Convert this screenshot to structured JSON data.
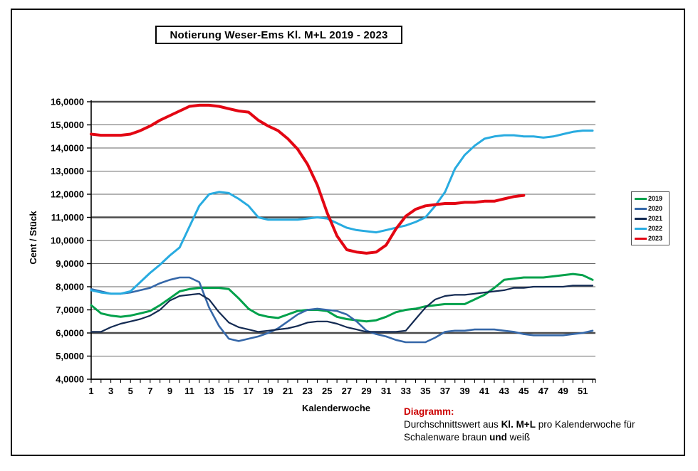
{
  "window": {
    "background": "#ffffff",
    "frame_border_color": "#000000"
  },
  "note": {
    "heading": "Diagramm:",
    "line2_a": "Durchschnittswert aus ",
    "line2_b": "Kl. M+L",
    "line2_c": " pro Kalenderwoche für",
    "line3_a": "Schalenware braun ",
    "line3_b": "und",
    "line3_c": " weiß",
    "heading_color": "#cc0000"
  },
  "chart_data": {
    "type": "line",
    "title": "Notierung Weser-Ems Kl. M+L 2019 - 2023",
    "xlabel": "Kalenderwoche",
    "ylabel": "Cent / Stück",
    "xlim": [
      1,
      52
    ],
    "ylim": [
      4,
      16
    ],
    "grid": "horizontal",
    "major_gridlines_at": [
      6,
      11,
      16
    ],
    "legend_position": "right-outside",
    "y_tick_labels": [
      "4,0000",
      "5,0000",
      "6,0000",
      "7,0000",
      "8,0000",
      "9,0000",
      "10,0000",
      "11,0000",
      "12,0000",
      "13,0000",
      "14,0000",
      "15,0000",
      "16,0000"
    ],
    "y_tick_values": [
      4,
      5,
      6,
      7,
      8,
      9,
      10,
      11,
      12,
      13,
      14,
      15,
      16
    ],
    "x_tick_labels": [
      "1",
      "3",
      "5",
      "7",
      "9",
      "11",
      "13",
      "15",
      "17",
      "19",
      "21",
      "23",
      "25",
      "27",
      "29",
      "31",
      "33",
      "35",
      "37",
      "39",
      "41",
      "43",
      "45",
      "47",
      "49",
      "51"
    ],
    "x_tick_values": [
      1,
      3,
      5,
      7,
      9,
      11,
      13,
      15,
      17,
      19,
      21,
      23,
      25,
      27,
      29,
      31,
      33,
      35,
      37,
      39,
      41,
      43,
      45,
      47,
      49,
      51
    ],
    "x_minor_tick_step": 1,
    "x_is_week_index_plus_1": true,
    "series": [
      {
        "name": "2019",
        "color": "#00a14b",
        "width": 3,
        "values": [
          7.2,
          6.85,
          6.75,
          6.7,
          6.75,
          6.85,
          6.95,
          7.2,
          7.5,
          7.8,
          7.9,
          7.95,
          7.95,
          7.95,
          7.9,
          7.5,
          7.05,
          6.8,
          6.7,
          6.65,
          6.8,
          6.95,
          7.0,
          7.0,
          6.95,
          6.7,
          6.6,
          6.55,
          6.5,
          6.55,
          6.7,
          6.9,
          7.0,
          7.05,
          7.15,
          7.2,
          7.25,
          7.25,
          7.25,
          7.45,
          7.65,
          7.95,
          8.3,
          8.35,
          8.4,
          8.4,
          8.4,
          8.45,
          8.5,
          8.55,
          8.5,
          8.3
        ]
      },
      {
        "name": "2020",
        "color": "#3567a8",
        "width": 2.6,
        "values": [
          7.9,
          7.8,
          7.7,
          7.7,
          7.75,
          7.85,
          7.95,
          8.15,
          8.3,
          8.4,
          8.4,
          8.2,
          7.1,
          6.3,
          5.75,
          5.65,
          5.75,
          5.85,
          6.0,
          6.2,
          6.5,
          6.8,
          7.0,
          7.05,
          7.0,
          6.95,
          6.8,
          6.5,
          6.1,
          5.95,
          5.85,
          5.7,
          5.6,
          5.6,
          5.6,
          5.8,
          6.05,
          6.1,
          6.1,
          6.15,
          6.15,
          6.15,
          6.1,
          6.05,
          5.95,
          5.9,
          5.9,
          5.9,
          5.9,
          5.95,
          6.0,
          6.1
        ]
      },
      {
        "name": "2021",
        "color": "#132a52",
        "width": 2.2,
        "values": [
          6.05,
          6.05,
          6.25,
          6.4,
          6.5,
          6.6,
          6.75,
          7.0,
          7.4,
          7.6,
          7.65,
          7.7,
          7.45,
          6.9,
          6.45,
          6.25,
          6.15,
          6.05,
          6.1,
          6.15,
          6.2,
          6.3,
          6.45,
          6.5,
          6.5,
          6.4,
          6.25,
          6.15,
          6.05,
          6.05,
          6.05,
          6.05,
          6.1,
          6.6,
          7.1,
          7.45,
          7.6,
          7.65,
          7.65,
          7.7,
          7.75,
          7.8,
          7.85,
          7.95,
          7.95,
          8.0,
          8.0,
          8.0,
          8.0,
          8.05,
          8.05,
          8.05
        ]
      },
      {
        "name": "2022",
        "color": "#28abe0",
        "width": 3,
        "values": [
          7.85,
          7.75,
          7.7,
          7.7,
          7.8,
          8.2,
          8.6,
          8.95,
          9.35,
          9.7,
          10.6,
          11.5,
          12.0,
          12.1,
          12.05,
          11.8,
          11.5,
          11.0,
          10.9,
          10.9,
          10.9,
          10.9,
          10.95,
          11.0,
          10.95,
          10.75,
          10.55,
          10.45,
          10.4,
          10.35,
          10.45,
          10.55,
          10.65,
          10.8,
          11.0,
          11.5,
          12.1,
          13.1,
          13.7,
          14.1,
          14.4,
          14.5,
          14.55,
          14.55,
          14.5,
          14.5,
          14.45,
          14.5,
          14.6,
          14.7,
          14.75,
          14.75
        ]
      },
      {
        "name": "2023",
        "color": "#e30613",
        "width": 4,
        "values": [
          14.6,
          14.55,
          14.55,
          14.55,
          14.6,
          14.75,
          14.95,
          15.2,
          15.4,
          15.6,
          15.8,
          15.85,
          15.85,
          15.8,
          15.7,
          15.6,
          15.55,
          15.2,
          14.95,
          14.75,
          14.4,
          13.95,
          13.3,
          12.4,
          11.2,
          10.2,
          9.6,
          9.5,
          9.45,
          9.5,
          9.8,
          10.5,
          11.05,
          11.35,
          11.5,
          11.55,
          11.6,
          11.6,
          11.65,
          11.65,
          11.7,
          11.7,
          11.8,
          11.9,
          11.95
        ]
      }
    ]
  }
}
